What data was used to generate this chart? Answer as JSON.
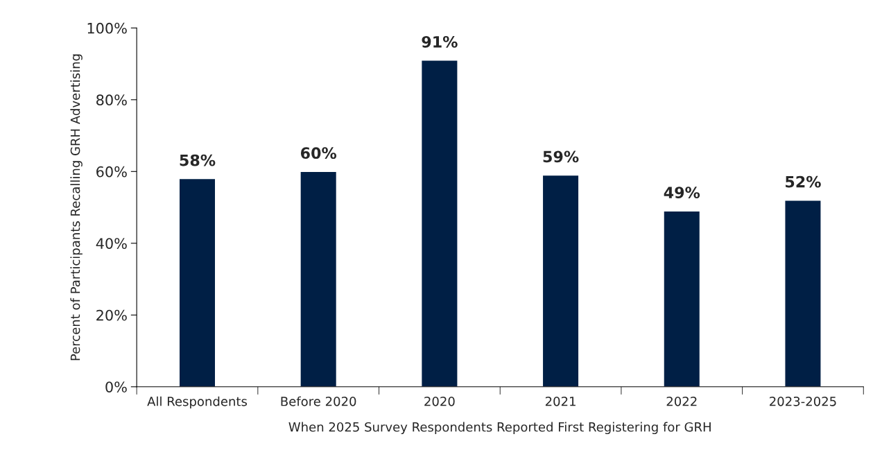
{
  "chart_data": {
    "type": "bar",
    "xlabel": "When 2025 Survey Respondents Reported First Registering for GRH",
    "ylabel": "Percent of Participants Recalling GRH Advertising",
    "categories": [
      "All Respondents",
      "Before 2020",
      "2020",
      "2021",
      "2022",
      "2023-2025"
    ],
    "values": [
      58,
      60,
      91,
      59,
      49,
      52
    ],
    "value_labels": [
      "58%",
      "60%",
      "91%",
      "59%",
      "49%",
      "52%"
    ],
    "color": "#001f45",
    "ylim": [
      0,
      100
    ],
    "yticks": [
      {
        "value": 0,
        "label": "0%"
      },
      {
        "value": 20,
        "label": "20%"
      },
      {
        "value": 40,
        "label": "40%"
      },
      {
        "value": 60,
        "label": "60%"
      },
      {
        "value": 80,
        "label": "80%"
      },
      {
        "value": 100,
        "label": "100%"
      }
    ],
    "grid": false
  }
}
